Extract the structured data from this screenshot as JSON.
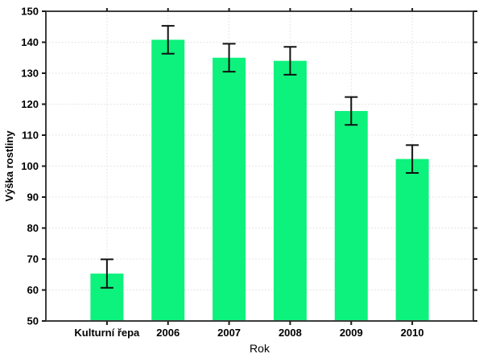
{
  "chart_data": {
    "type": "bar",
    "title": "",
    "categories": [
      "Kulturní řepa",
      "2006",
      "2007",
      "2008",
      "2009",
      "2010"
    ],
    "values": [
      65.3,
      140.8,
      135.0,
      134.0,
      117.8,
      102.3
    ],
    "errors": [
      4.6,
      4.5,
      4.5,
      4.5,
      4.5,
      4.5
    ],
    "xlabel": "Rok",
    "ylabel": "Výška rostliny",
    "ylim": [
      50,
      150
    ],
    "ytick_step": 10,
    "yticks": [
      50,
      60,
      70,
      80,
      90,
      100,
      110,
      120,
      130,
      140,
      150
    ],
    "grid": "dotted horizontal and vertical",
    "legend": "none",
    "colors": {
      "bar_fill": "#0df27c",
      "error_bar": "#111111",
      "frame": "#3d3d3d",
      "tick": "#1a1a1a",
      "gridline": "#dedede",
      "background": "#ffffff",
      "text": "#000000"
    }
  }
}
